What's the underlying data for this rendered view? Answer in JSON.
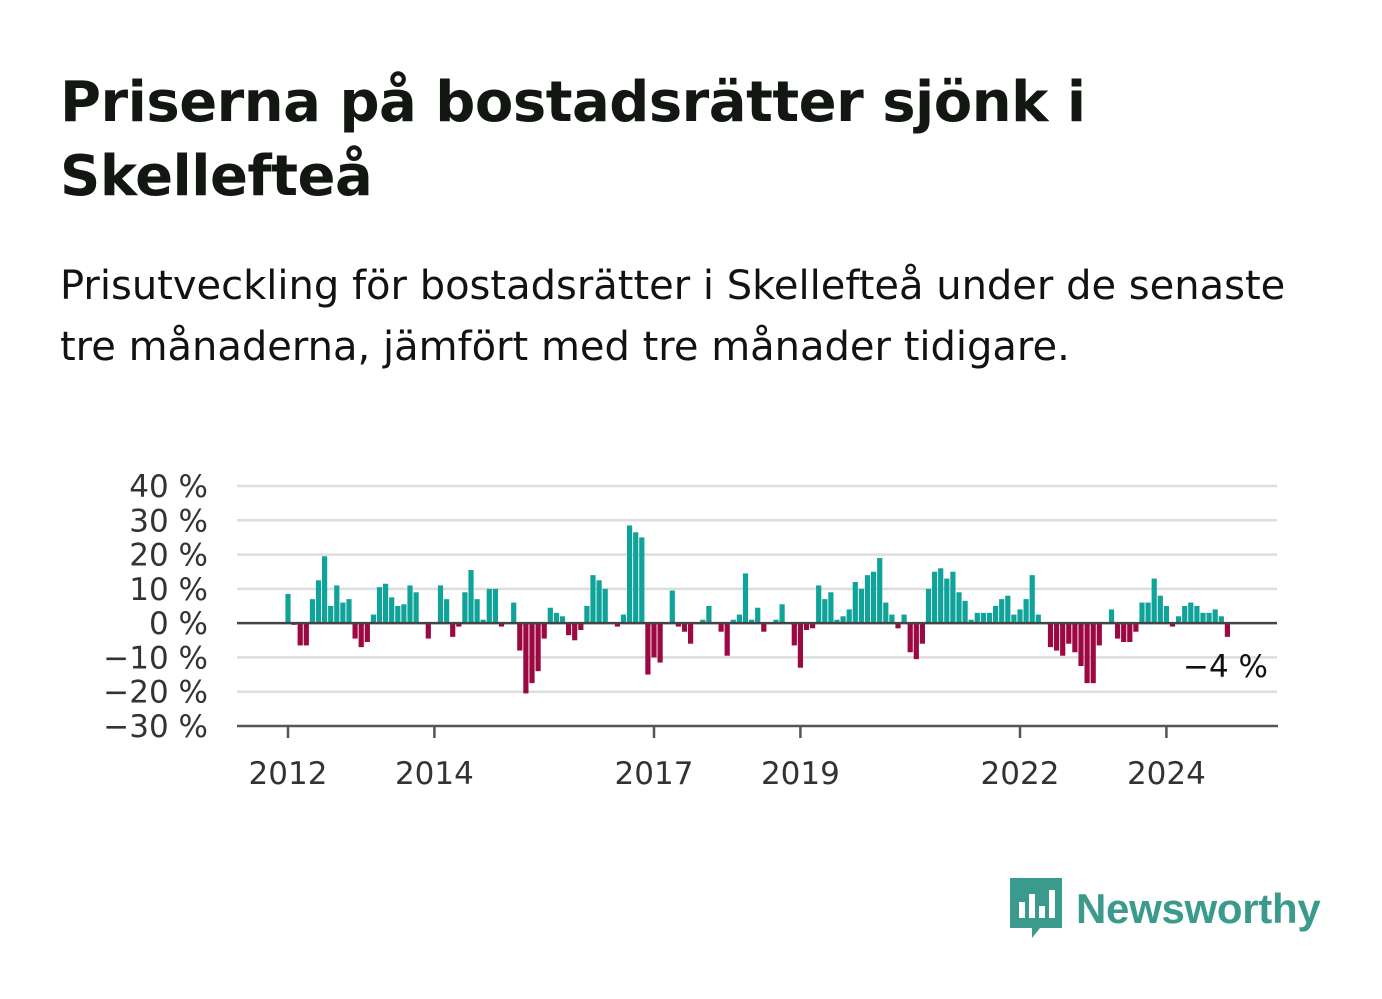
{
  "title": "Priserna på bostadsrätter sjönk i Skellefteå",
  "subtitle": "Prisutveckling för bostadsrätter i Skellefteå under de senaste tre månaderna, jämfört med tre månader tidigare.",
  "logo_text": "Newsworthy",
  "colors": {
    "positive": "#0fa39a",
    "negative": "#9c0841",
    "grid": "#dddddd",
    "axis": "#555555",
    "logo": "#3a9a8b"
  },
  "chart_data": {
    "type": "bar",
    "x_start": "2012-01",
    "y_tick_labels": [
      "40 %",
      "30 %",
      "20 %",
      "10 %",
      "0 %",
      "−10 %",
      "−20 %",
      "−30 %"
    ],
    "y_ticks": [
      40,
      30,
      20,
      10,
      0,
      -10,
      -20,
      -30
    ],
    "ylim": [
      -30,
      40
    ],
    "x_tick_labels": [
      "2012",
      "2014",
      "2017",
      "2019",
      "2022",
      "2024"
    ],
    "x_tick_positions": [
      "2012-01",
      "2014-01",
      "2017-01",
      "2019-01",
      "2022-01",
      "2024-01"
    ],
    "last_value_label": "−4 %",
    "values": [
      8.5,
      -0.5,
      -6.5,
      -6.5,
      7,
      12.5,
      19.5,
      5,
      11,
      6,
      7,
      -4.5,
      -7,
      -5.5,
      2.5,
      10.5,
      11.5,
      7.5,
      5,
      5.5,
      11,
      9,
      0,
      -4.5,
      0,
      11,
      7,
      -4,
      -1,
      9,
      15.5,
      7,
      1,
      10,
      10,
      -1,
      0,
      6,
      -8,
      -20.5,
      -17.5,
      -14,
      -4.5,
      4.5,
      3,
      2,
      -3.5,
      -5,
      -2,
      5,
      14,
      12.5,
      10,
      0,
      -1,
      2.5,
      28.5,
      26.5,
      25,
      -15,
      -10,
      -11.5,
      0,
      9.5,
      -1,
      -2.5,
      -6,
      0,
      1,
      5,
      0,
      -2.5,
      -9.5,
      1,
      2.5,
      14.5,
      1,
      4.5,
      -2.5,
      0,
      1,
      5.5,
      0,
      -6.5,
      -13,
      -2,
      -1.5,
      11,
      7,
      9,
      1,
      2,
      4,
      12,
      10,
      14,
      15,
      19,
      6,
      2.5,
      -1.5,
      2.5,
      -8.5,
      -10.5,
      -6,
      10,
      15,
      16,
      13,
      15,
      9,
      6.5,
      1,
      3,
      3,
      3,
      5,
      7,
      8,
      2.5,
      4,
      7,
      14,
      2.5,
      0,
      -7,
      -8,
      -9.5,
      -6,
      -8.5,
      -12.5,
      -17.5,
      -17.5,
      -6.5,
      0,
      4,
      -4.5,
      -5.5,
      -5.5,
      -2.5,
      6,
      6,
      13,
      8,
      5,
      -1,
      2,
      5,
      6,
      5,
      3,
      3,
      4,
      2,
      -4
    ]
  }
}
